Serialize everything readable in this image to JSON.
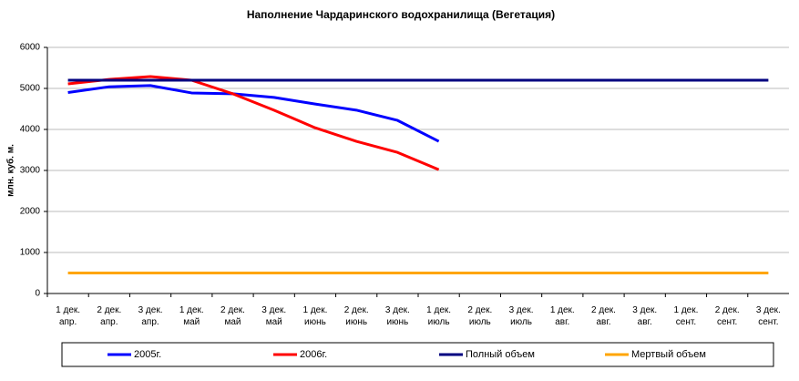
{
  "chart_data": {
    "type": "line",
    "title": "Наполнение Чардаринского водохранилища (Вегетация)",
    "y_label": "млн. куб. м.",
    "categories": [
      "1 дек.\nапр.",
      "2 дек.\nапр.",
      "3 дек.\nапр.",
      "1 дек.\nмай",
      "2 дек.\nмай",
      "3 дек.\nмай",
      "1 дек.\nиюнь",
      "2 дек.\nиюнь",
      "3 дек.\nиюнь",
      "1 дек.\nиюль",
      "2 дек.\nиюль",
      "3 дек.\nиюль",
      "1 дек.\nавг.",
      "2 дек.\nавг.",
      "3 дек.\nавг.",
      "1 дек.\nсент.",
      "2 дек.\nсент.",
      "3 дек.\nсент."
    ],
    "series": [
      {
        "name": "2005г.",
        "color": "#0000ff",
        "values": [
          4900,
          5040,
          5070,
          4890,
          4870,
          4780,
          4620,
          4470,
          4220,
          3710,
          null,
          null,
          null,
          null,
          null,
          null,
          null,
          null
        ]
      },
      {
        "name": "2006г.",
        "color": "#ff0000",
        "values": [
          5110,
          5220,
          5290,
          5200,
          4870,
          4470,
          4040,
          3710,
          3440,
          3020,
          null,
          null,
          null,
          null,
          null,
          null,
          null,
          null
        ]
      },
      {
        "name": "Полный объем",
        "color": "#000080",
        "values": [
          5200,
          5200,
          5200,
          5200,
          5200,
          5200,
          5200,
          5200,
          5200,
          5200,
          5200,
          5200,
          5200,
          5200,
          5200,
          5200,
          5200,
          5200
        ]
      },
      {
        "name": "Мертвый объем",
        "color": "#ffa500",
        "values": [
          500,
          500,
          500,
          500,
          500,
          500,
          500,
          500,
          500,
          500,
          500,
          500,
          500,
          500,
          500,
          500,
          500,
          500
        ]
      }
    ],
    "ylim": [
      0,
      6000
    ],
    "yticks": [
      0,
      1000,
      2000,
      3000,
      4000,
      5000,
      6000
    ],
    "grid": true,
    "legend": "bottom"
  }
}
